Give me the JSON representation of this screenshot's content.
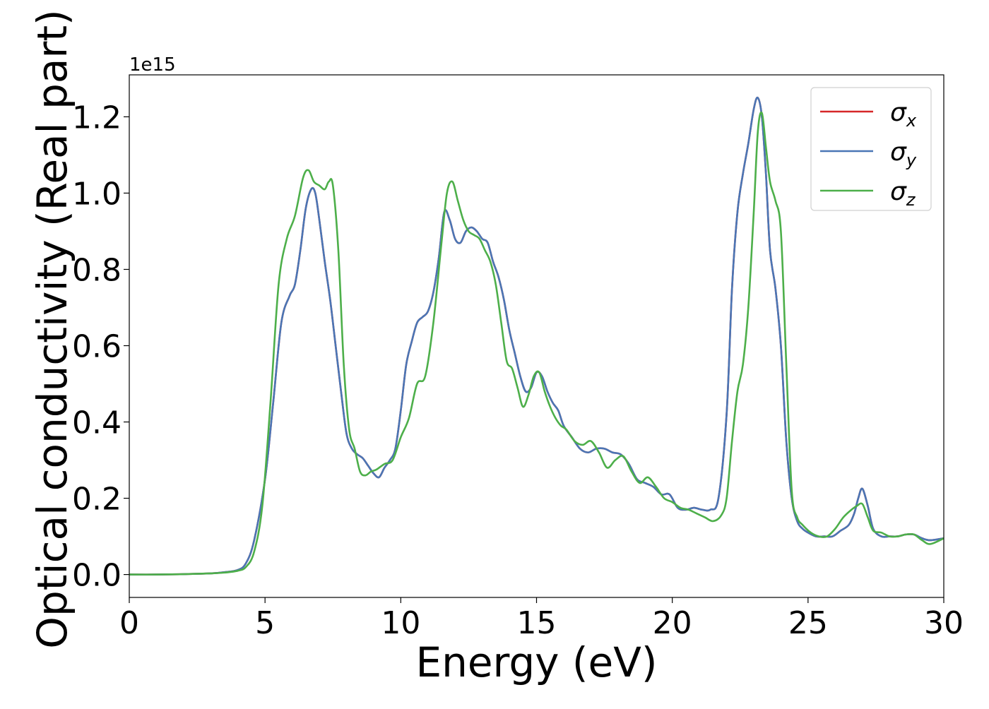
{
  "chart_data": {
    "type": "line",
    "xlabel": "Energy (eV)",
    "ylabel": "Optical conductivity (Real part)",
    "offset_text": "1e15",
    "xlim": [
      0,
      30
    ],
    "ylim": [
      -0.06,
      1.31
    ],
    "xticks": [
      0,
      5,
      10,
      15,
      20,
      25,
      30
    ],
    "xtick_labels": [
      "0",
      "5",
      "10",
      "15",
      "20",
      "25",
      "30"
    ],
    "yticks": [
      0.0,
      0.2,
      0.4,
      0.6,
      0.8,
      1.0,
      1.2
    ],
    "ytick_labels": [
      "0.0",
      "0.2",
      "0.4",
      "0.6",
      "0.8",
      "1.0",
      "1.2"
    ],
    "grid": false,
    "legend_position": "upper-right",
    "series": [
      {
        "name": "σx",
        "legend_base": "σ",
        "legend_sub": "x",
        "color": "#d62728",
        "x": [
          0,
          1,
          2,
          3,
          3.5,
          4,
          4.3,
          4.6,
          5.0,
          5.3,
          5.6,
          5.9,
          6.1,
          6.3,
          6.5,
          6.7,
          6.85,
          7.0,
          7.2,
          7.4,
          7.6,
          7.8,
          8.0,
          8.2,
          8.4,
          8.6,
          8.8,
          9.0,
          9.2,
          9.4,
          9.6,
          9.8,
          10.0,
          10.2,
          10.4,
          10.6,
          10.8,
          11.0,
          11.2,
          11.4,
          11.6,
          11.8,
          12.0,
          12.2,
          12.4,
          12.6,
          12.8,
          13.0,
          13.2,
          13.4,
          13.6,
          13.8,
          14.0,
          14.2,
          14.4,
          14.6,
          14.8,
          15.0,
          15.2,
          15.4,
          15.6,
          15.8,
          16.0,
          16.3,
          16.6,
          16.9,
          17.2,
          17.5,
          17.8,
          18.1,
          18.4,
          18.7,
          19.0,
          19.3,
          19.6,
          19.9,
          20.2,
          20.5,
          20.8,
          21.1,
          21.4,
          21.7,
          22.0,
          22.2,
          22.4,
          22.6,
          22.8,
          23.0,
          23.15,
          23.3,
          23.45,
          23.6,
          23.8,
          24.0,
          24.2,
          24.4,
          24.6,
          24.8,
          25.0,
          25.3,
          25.6,
          25.9,
          26.2,
          26.5,
          26.7,
          26.85,
          27.0,
          27.2,
          27.4,
          27.7,
          28.0,
          28.3,
          28.6,
          28.9,
          29.2,
          29.5,
          30.0
        ],
        "y": [
          0.0,
          0.0,
          0.001,
          0.003,
          0.006,
          0.012,
          0.03,
          0.09,
          0.25,
          0.45,
          0.66,
          0.73,
          0.76,
          0.85,
          0.96,
          1.01,
          1.0,
          0.93,
          0.82,
          0.72,
          0.6,
          0.48,
          0.37,
          0.33,
          0.315,
          0.305,
          0.285,
          0.265,
          0.255,
          0.28,
          0.3,
          0.33,
          0.43,
          0.55,
          0.61,
          0.66,
          0.675,
          0.69,
          0.74,
          0.83,
          0.95,
          0.93,
          0.88,
          0.87,
          0.9,
          0.91,
          0.9,
          0.88,
          0.87,
          0.82,
          0.78,
          0.72,
          0.64,
          0.58,
          0.52,
          0.48,
          0.49,
          0.53,
          0.52,
          0.48,
          0.45,
          0.43,
          0.39,
          0.36,
          0.33,
          0.32,
          0.33,
          0.33,
          0.32,
          0.315,
          0.29,
          0.25,
          0.24,
          0.23,
          0.21,
          0.21,
          0.175,
          0.17,
          0.175,
          0.17,
          0.17,
          0.2,
          0.42,
          0.75,
          0.95,
          1.05,
          1.13,
          1.22,
          1.25,
          1.2,
          1.05,
          0.85,
          0.75,
          0.6,
          0.35,
          0.2,
          0.14,
          0.12,
          0.11,
          0.1,
          0.1,
          0.1,
          0.115,
          0.13,
          0.16,
          0.2,
          0.225,
          0.18,
          0.12,
          0.1,
          0.1,
          0.1,
          0.105,
          0.105,
          0.095,
          0.09,
          0.095
        ]
      },
      {
        "name": "σy",
        "legend_base": "σ",
        "legend_sub": "y",
        "color": "#4a76b5",
        "x": [
          0,
          1,
          2,
          3,
          3.5,
          4,
          4.3,
          4.6,
          5.0,
          5.3,
          5.6,
          5.9,
          6.1,
          6.3,
          6.5,
          6.7,
          6.85,
          7.0,
          7.2,
          7.4,
          7.6,
          7.8,
          8.0,
          8.2,
          8.4,
          8.6,
          8.8,
          9.0,
          9.2,
          9.4,
          9.6,
          9.8,
          10.0,
          10.2,
          10.4,
          10.6,
          10.8,
          11.0,
          11.2,
          11.4,
          11.6,
          11.8,
          12.0,
          12.2,
          12.4,
          12.6,
          12.8,
          13.0,
          13.2,
          13.4,
          13.6,
          13.8,
          14.0,
          14.2,
          14.4,
          14.6,
          14.8,
          15.0,
          15.2,
          15.4,
          15.6,
          15.8,
          16.0,
          16.3,
          16.6,
          16.9,
          17.2,
          17.5,
          17.8,
          18.1,
          18.4,
          18.7,
          19.0,
          19.3,
          19.6,
          19.9,
          20.2,
          20.5,
          20.8,
          21.1,
          21.4,
          21.7,
          22.0,
          22.2,
          22.4,
          22.6,
          22.8,
          23.0,
          23.15,
          23.3,
          23.45,
          23.6,
          23.8,
          24.0,
          24.2,
          24.4,
          24.6,
          24.8,
          25.0,
          25.3,
          25.6,
          25.9,
          26.2,
          26.5,
          26.7,
          26.85,
          27.0,
          27.2,
          27.4,
          27.7,
          28.0,
          28.3,
          28.6,
          28.9,
          29.2,
          29.5,
          30.0
        ],
        "y": [
          0.0,
          0.0,
          0.001,
          0.003,
          0.006,
          0.012,
          0.03,
          0.09,
          0.25,
          0.45,
          0.66,
          0.73,
          0.76,
          0.85,
          0.96,
          1.01,
          1.0,
          0.93,
          0.82,
          0.72,
          0.6,
          0.48,
          0.37,
          0.33,
          0.315,
          0.305,
          0.285,
          0.265,
          0.255,
          0.28,
          0.3,
          0.33,
          0.43,
          0.55,
          0.61,
          0.66,
          0.675,
          0.69,
          0.74,
          0.83,
          0.95,
          0.93,
          0.88,
          0.87,
          0.9,
          0.91,
          0.9,
          0.88,
          0.87,
          0.82,
          0.78,
          0.72,
          0.64,
          0.58,
          0.52,
          0.48,
          0.49,
          0.53,
          0.52,
          0.48,
          0.45,
          0.43,
          0.39,
          0.36,
          0.33,
          0.32,
          0.33,
          0.33,
          0.32,
          0.315,
          0.29,
          0.25,
          0.24,
          0.23,
          0.21,
          0.21,
          0.175,
          0.17,
          0.175,
          0.17,
          0.17,
          0.2,
          0.42,
          0.75,
          0.95,
          1.05,
          1.13,
          1.22,
          1.25,
          1.2,
          1.05,
          0.85,
          0.75,
          0.6,
          0.35,
          0.2,
          0.14,
          0.12,
          0.11,
          0.1,
          0.1,
          0.1,
          0.115,
          0.13,
          0.16,
          0.2,
          0.225,
          0.18,
          0.12,
          0.1,
          0.1,
          0.1,
          0.105,
          0.105,
          0.095,
          0.09,
          0.095
        ]
      },
      {
        "name": "σz",
        "legend_base": "σ",
        "legend_sub": "z",
        "color": "#4daf4a",
        "x": [
          0,
          1,
          2,
          3,
          3.5,
          4,
          4.3,
          4.6,
          4.9,
          5.2,
          5.5,
          5.8,
          6.1,
          6.4,
          6.6,
          6.8,
          7.0,
          7.2,
          7.35,
          7.5,
          7.7,
          7.9,
          8.1,
          8.3,
          8.5,
          8.7,
          8.9,
          9.1,
          9.4,
          9.7,
          10.0,
          10.3,
          10.6,
          10.9,
          11.2,
          11.5,
          11.7,
          11.9,
          12.1,
          12.3,
          12.5,
          12.7,
          12.9,
          13.1,
          13.3,
          13.5,
          13.7,
          13.9,
          14.1,
          14.3,
          14.5,
          14.7,
          14.9,
          15.1,
          15.3,
          15.5,
          15.7,
          15.9,
          16.1,
          16.4,
          16.7,
          17.0,
          17.3,
          17.6,
          17.9,
          18.2,
          18.5,
          18.8,
          19.1,
          19.4,
          19.7,
          20.0,
          20.3,
          20.6,
          20.9,
          21.2,
          21.5,
          21.8,
          22.0,
          22.2,
          22.4,
          22.6,
          22.8,
          23.0,
          23.15,
          23.3,
          23.45,
          23.6,
          23.8,
          24.0,
          24.2,
          24.4,
          24.6,
          24.8,
          25.1,
          25.4,
          25.7,
          26.0,
          26.3,
          26.6,
          26.8,
          27.0,
          27.2,
          27.4,
          27.7,
          28.0,
          28.3,
          28.6,
          28.9,
          29.2,
          29.5,
          30.0
        ],
        "y": [
          0.0,
          0.0,
          0.001,
          0.003,
          0.005,
          0.01,
          0.02,
          0.06,
          0.18,
          0.45,
          0.76,
          0.88,
          0.94,
          1.04,
          1.06,
          1.03,
          1.02,
          1.01,
          1.03,
          1.02,
          0.85,
          0.55,
          0.38,
          0.33,
          0.27,
          0.26,
          0.27,
          0.275,
          0.29,
          0.3,
          0.36,
          0.41,
          0.5,
          0.52,
          0.66,
          0.87,
          1.0,
          1.03,
          0.98,
          0.93,
          0.9,
          0.89,
          0.88,
          0.85,
          0.82,
          0.76,
          0.66,
          0.56,
          0.54,
          0.49,
          0.44,
          0.47,
          0.52,
          0.53,
          0.48,
          0.44,
          0.41,
          0.39,
          0.38,
          0.35,
          0.34,
          0.35,
          0.32,
          0.28,
          0.3,
          0.31,
          0.27,
          0.24,
          0.255,
          0.23,
          0.2,
          0.19,
          0.175,
          0.17,
          0.16,
          0.15,
          0.14,
          0.155,
          0.2,
          0.35,
          0.48,
          0.55,
          0.7,
          0.95,
          1.16,
          1.21,
          1.12,
          1.03,
          0.98,
          0.9,
          0.55,
          0.22,
          0.15,
          0.13,
          0.11,
          0.1,
          0.1,
          0.12,
          0.15,
          0.17,
          0.18,
          0.185,
          0.15,
          0.115,
          0.11,
          0.1,
          0.1,
          0.105,
          0.105,
          0.09,
          0.08,
          0.095
        ]
      }
    ]
  }
}
